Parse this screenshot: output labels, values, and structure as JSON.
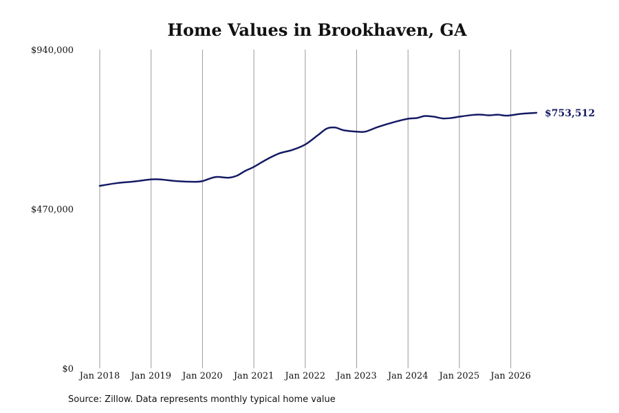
{
  "chart_data": {
    "type": "line",
    "title": "Home Values in Brookhaven, GA",
    "xlabel": "",
    "ylabel": "",
    "ylim": [
      0,
      940000
    ],
    "y_ticks": [
      {
        "value": 0,
        "label": "$0"
      },
      {
        "value": 470000,
        "label": "$470,000"
      },
      {
        "value": 940000,
        "label": "$940,000"
      }
    ],
    "x_ticks": [
      {
        "value": 2018,
        "label": "Jan 2018"
      },
      {
        "value": 2019,
        "label": "Jan 2019"
      },
      {
        "value": 2020,
        "label": "Jan 2020"
      },
      {
        "value": 2021,
        "label": "Jan 2021"
      },
      {
        "value": 2022,
        "label": "Jan 2022"
      },
      {
        "value": 2023,
        "label": "Jan 2023"
      },
      {
        "value": 2024,
        "label": "Jan 2024"
      },
      {
        "value": 2025,
        "label": "Jan 2025"
      },
      {
        "value": 2026,
        "label": "Jan 2026"
      }
    ],
    "grid": "vertical",
    "series": [
      {
        "color": "#141a63",
        "points": [
          {
            "x": 2018.0,
            "y": 538000
          },
          {
            "x": 2018.33,
            "y": 546000
          },
          {
            "x": 2018.67,
            "y": 551000
          },
          {
            "x": 2019.0,
            "y": 557000
          },
          {
            "x": 2019.17,
            "y": 557000
          },
          {
            "x": 2019.5,
            "y": 552000
          },
          {
            "x": 2019.83,
            "y": 550000
          },
          {
            "x": 2020.0,
            "y": 552000
          },
          {
            "x": 2020.25,
            "y": 564000
          },
          {
            "x": 2020.5,
            "y": 562000
          },
          {
            "x": 2020.67,
            "y": 568000
          },
          {
            "x": 2020.83,
            "y": 582000
          },
          {
            "x": 2021.0,
            "y": 594000
          },
          {
            "x": 2021.25,
            "y": 616000
          },
          {
            "x": 2021.5,
            "y": 634000
          },
          {
            "x": 2021.75,
            "y": 644000
          },
          {
            "x": 2022.0,
            "y": 660000
          },
          {
            "x": 2022.25,
            "y": 688000
          },
          {
            "x": 2022.42,
            "y": 707000
          },
          {
            "x": 2022.58,
            "y": 710000
          },
          {
            "x": 2022.75,
            "y": 702000
          },
          {
            "x": 2023.0,
            "y": 698000
          },
          {
            "x": 2023.17,
            "y": 698000
          },
          {
            "x": 2023.42,
            "y": 712000
          },
          {
            "x": 2023.75,
            "y": 727000
          },
          {
            "x": 2024.0,
            "y": 736000
          },
          {
            "x": 2024.17,
            "y": 738000
          },
          {
            "x": 2024.33,
            "y": 744000
          },
          {
            "x": 2024.5,
            "y": 742000
          },
          {
            "x": 2024.67,
            "y": 737000
          },
          {
            "x": 2024.83,
            "y": 738000
          },
          {
            "x": 2025.0,
            "y": 742000
          },
          {
            "x": 2025.25,
            "y": 747000
          },
          {
            "x": 2025.42,
            "y": 748000
          },
          {
            "x": 2025.58,
            "y": 746000
          },
          {
            "x": 2025.75,
            "y": 748000
          },
          {
            "x": 2025.92,
            "y": 745000
          },
          {
            "x": 2026.17,
            "y": 750000
          },
          {
            "x": 2026.33,
            "y": 752000
          },
          {
            "x": 2026.5,
            "y": 753512
          }
        ],
        "end_label": "$753,512"
      }
    ]
  },
  "source_text": "Source: Zillow. Data represents monthly typical home value"
}
